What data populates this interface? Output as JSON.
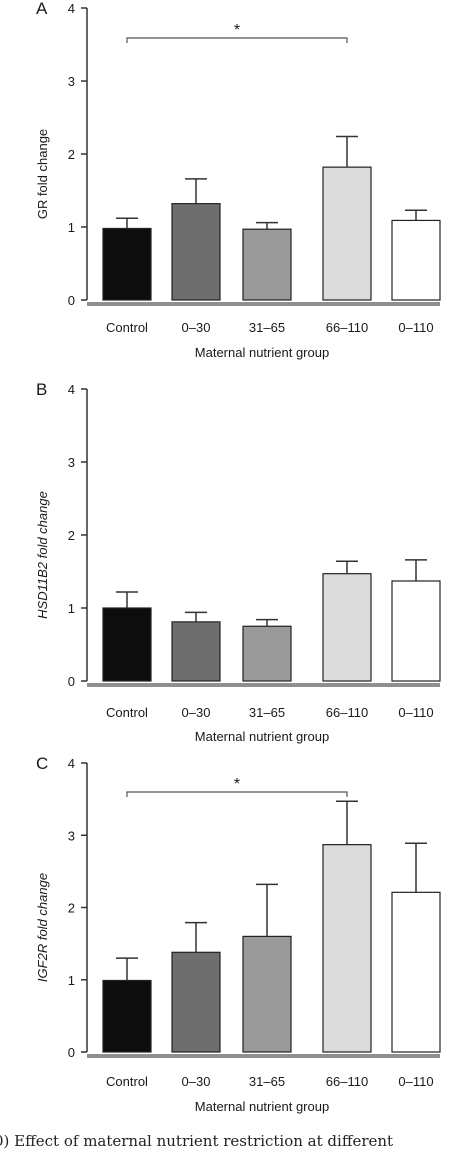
{
  "caption": "0) Effect of maternal nutrient restriction at different",
  "colors": {
    "bars": [
      "#0d0d0d",
      "#6e6e6e",
      "#9a9a9a",
      "#dcdcdc",
      "#ffffff"
    ],
    "stroke": "#222222",
    "baseline": "#8f8f8f"
  },
  "chart_data": [
    {
      "type": "bar",
      "panel": "A",
      "categories": [
        "Control",
        "0–30",
        "31–65",
        "66–110",
        "0–110"
      ],
      "values": [
        0.98,
        1.32,
        0.97,
        1.82,
        1.09
      ],
      "errors": [
        0.14,
        0.34,
        0.09,
        0.42,
        0.14
      ],
      "ylabel": "GR fold change",
      "xlabel": "Maternal nutrient group",
      "ylim": [
        0,
        4
      ],
      "yticks": [
        "0",
        "1",
        "2",
        "3",
        "4"
      ],
      "significance": [
        {
          "from": "Control",
          "to": "66–110",
          "label": "*"
        }
      ]
    },
    {
      "type": "bar",
      "panel": "B",
      "categories": [
        "Control",
        "0–30",
        "31–65",
        "66–110",
        "0–110"
      ],
      "values": [
        1.0,
        0.81,
        0.75,
        1.47,
        1.37
      ],
      "errors": [
        0.22,
        0.13,
        0.09,
        0.17,
        0.29
      ],
      "ylabel": "HSD11B2 fold change",
      "xlabel": "Maternal nutrient group",
      "ylim": [
        0,
        4
      ],
      "yticks": [
        "0",
        "1",
        "2",
        "3",
        "4"
      ],
      "significance": []
    },
    {
      "type": "bar",
      "panel": "C",
      "categories": [
        "Control",
        "0–30",
        "31–65",
        "66–110",
        "0–110"
      ],
      "values": [
        0.99,
        1.38,
        1.6,
        2.87,
        2.21
      ],
      "errors": [
        0.31,
        0.41,
        0.72,
        0.6,
        0.68
      ],
      "ylabel": "IGF2R fold change",
      "xlabel": "Maternal nutrient group",
      "ylim": [
        0,
        4
      ],
      "yticks": [
        "0",
        "1",
        "2",
        "3",
        "4"
      ],
      "significance": [
        {
          "from": "Control",
          "to": "66–110",
          "label": "*"
        }
      ]
    }
  ]
}
